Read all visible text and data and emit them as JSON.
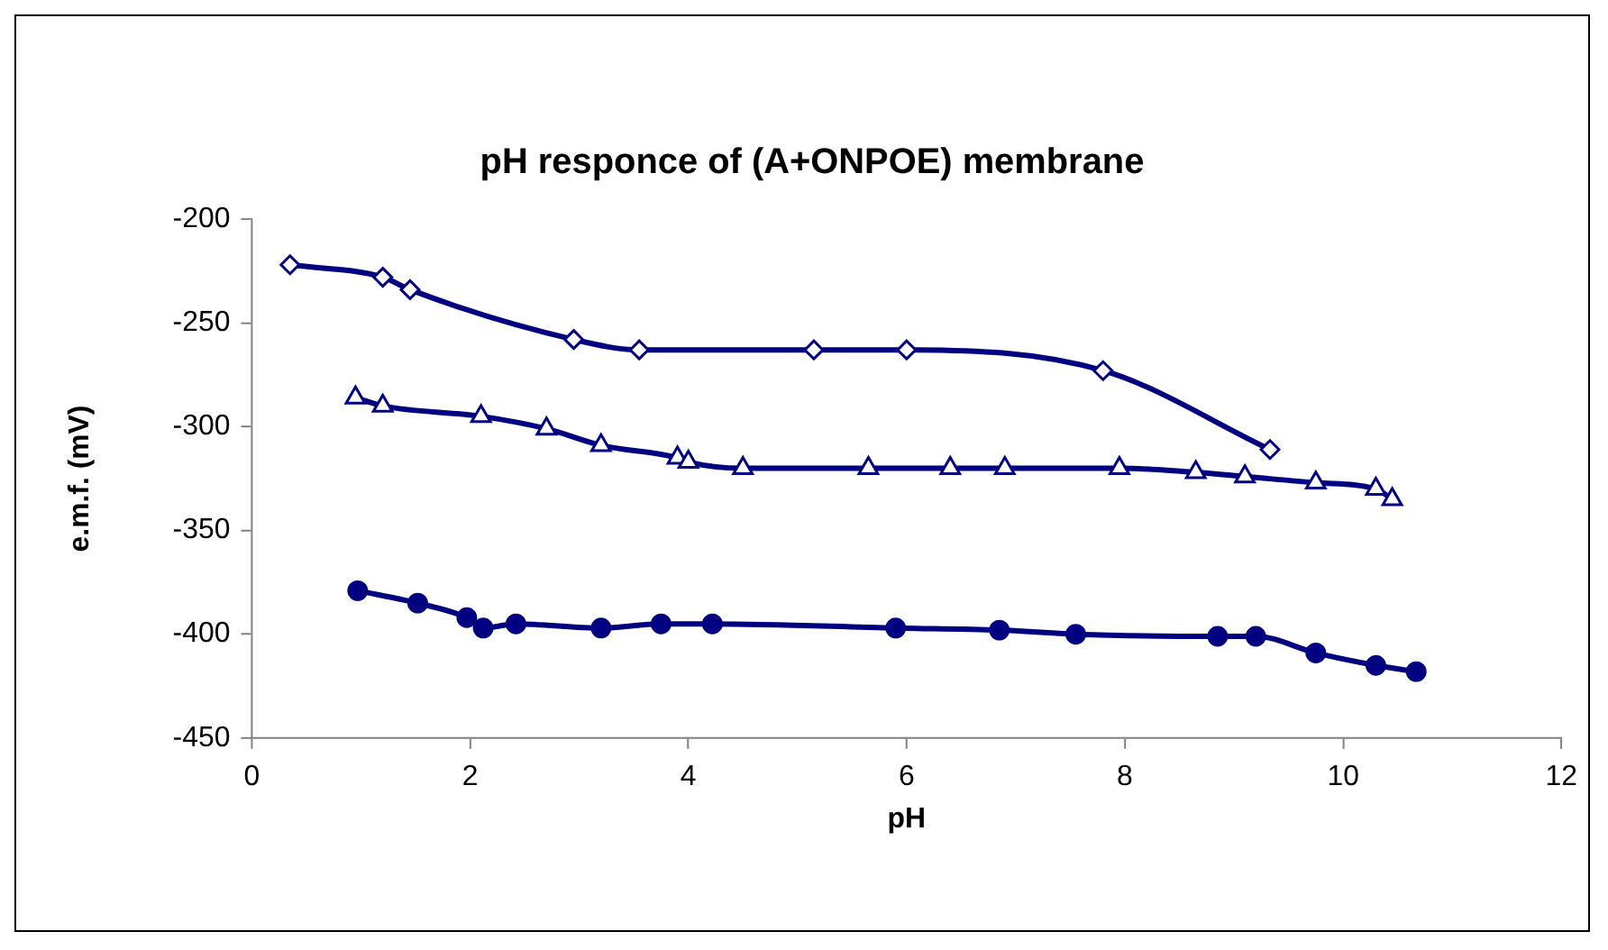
{
  "chart_data": {
    "type": "line",
    "title": "pH responce of (A+ONPOE) membrane",
    "xlabel": "pH",
    "ylabel": "e.m.f. (mV)",
    "xlim": [
      0,
      12
    ],
    "xticks": [
      0,
      2,
      4,
      6,
      8,
      10,
      12
    ],
    "ylim": [
      -450,
      -200
    ],
    "yticks": [
      -450,
      -400,
      -350,
      -300,
      -250,
      -200
    ],
    "grid": false,
    "legend": false,
    "series": [
      {
        "color": "#000080",
        "marker": "diamond",
        "x": [
          0.35,
          1.2,
          1.45,
          2.95,
          3.55,
          5.15,
          6.0,
          7.8,
          9.33
        ],
        "values": [
          -222,
          -228,
          -234,
          -258,
          -263,
          -263,
          -263,
          -273,
          -311
        ]
      },
      {
        "color": "#000080",
        "marker": "triangle",
        "x": [
          0.95,
          1.2,
          2.1,
          2.7,
          3.2,
          3.9,
          4.0,
          4.5,
          5.65,
          6.4,
          6.9,
          7.95,
          8.65,
          9.1,
          9.75,
          10.3,
          10.45
        ],
        "values": [
          -286,
          -290,
          -295,
          -301,
          -309,
          -315,
          -317,
          -320,
          -320,
          -320,
          -320,
          -320,
          -322,
          -324,
          -327,
          -330,
          -335
        ]
      },
      {
        "color": "#000080",
        "marker": "circle",
        "x": [
          0.97,
          1.52,
          1.97,
          2.12,
          2.42,
          3.2,
          3.75,
          4.22,
          5.9,
          6.85,
          7.55,
          8.85,
          9.2,
          9.75,
          10.3,
          10.67
        ],
        "values": [
          -379,
          -385,
          -392,
          -397,
          -395,
          -397,
          -395,
          -395,
          -397,
          -398,
          -400,
          -401,
          -401,
          -409,
          -415,
          -418
        ]
      }
    ]
  }
}
